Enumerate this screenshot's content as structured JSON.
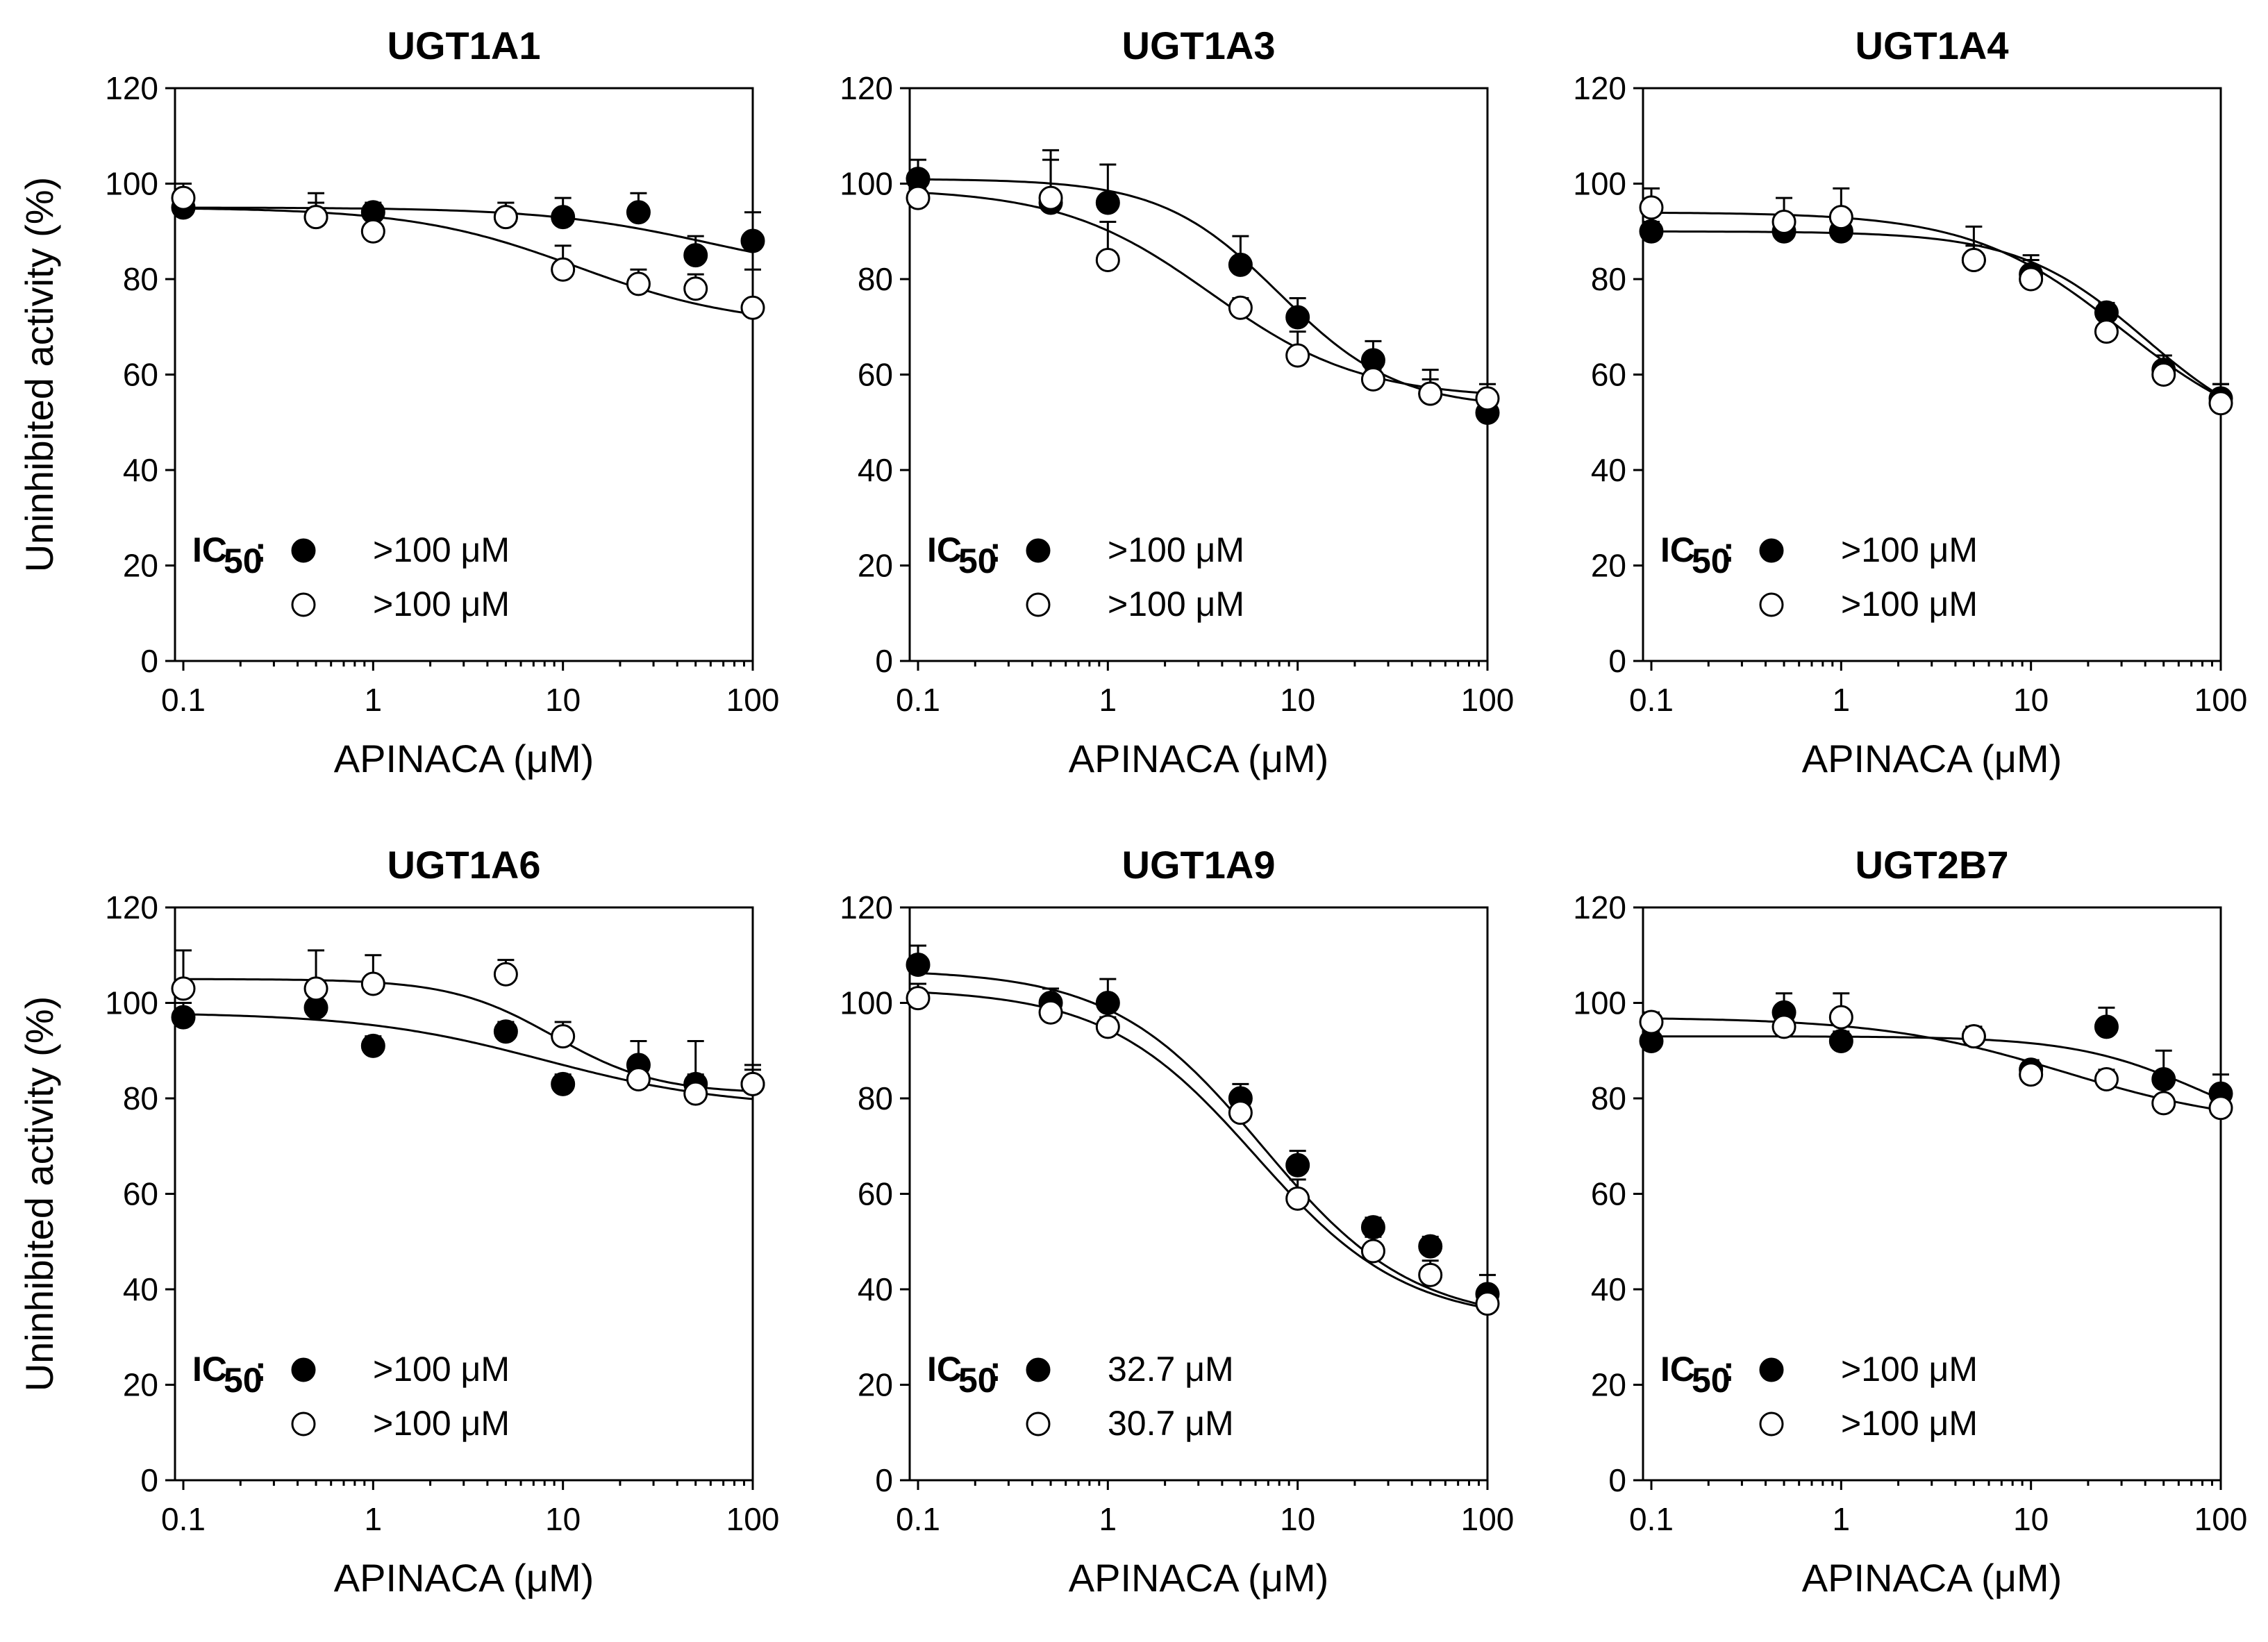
{
  "chart_data": [
    {
      "type": "scatter",
      "title": "UGT1A1",
      "xlabel": "APINACA (μM)",
      "ylabel": "Uninhibited activity (%)",
      "xscale": "log",
      "xlim": [
        0.1,
        100
      ],
      "ylim": [
        0,
        120
      ],
      "xticks": [
        "0.1",
        "1",
        "10",
        "100"
      ],
      "yticks": [
        "0",
        "20",
        "40",
        "60",
        "80",
        "100",
        "120"
      ],
      "legend": {
        "label": "IC",
        "subscript": "50",
        "entries": [
          ">100 μM",
          ">100 μM"
        ]
      },
      "series": [
        {
          "name": "filled",
          "x": [
            0.1,
            0.5,
            1,
            5,
            10,
            25,
            50,
            100
          ],
          "y": [
            95,
            93,
            94,
            93,
            93,
            94,
            85,
            88
          ],
          "err": [
            2,
            3,
            2,
            3,
            4,
            4,
            4,
            6
          ],
          "curve": {
            "top": 95,
            "bottom": 80,
            "ic50": 60,
            "hill": 1
          }
        },
        {
          "name": "open",
          "x": [
            0.1,
            0.5,
            1,
            5,
            10,
            25,
            50,
            100
          ],
          "y": [
            97,
            93,
            90,
            93,
            82,
            79,
            78,
            74
          ],
          "err": [
            3,
            5,
            5,
            3,
            5,
            3,
            3,
            8
          ],
          "curve": {
            "top": 95,
            "bottom": 70,
            "ic50": 12,
            "hill": 1
          }
        }
      ]
    },
    {
      "type": "scatter",
      "title": "UGT1A3",
      "xlabel": "APINACA (μM)",
      "ylabel": "",
      "xscale": "log",
      "xlim": [
        0.1,
        100
      ],
      "ylim": [
        0,
        120
      ],
      "xticks": [
        "0.1",
        "1",
        "10",
        "100"
      ],
      "yticks": [
        "0",
        "20",
        "40",
        "60",
        "80",
        "100",
        "120"
      ],
      "legend": {
        "label": "IC",
        "subscript": "50",
        "entries": [
          ">100 μM",
          ">100 μM"
        ]
      },
      "series": [
        {
          "name": "filled",
          "x": [
            0.1,
            0.5,
            1,
            5,
            10,
            25,
            50,
            100
          ],
          "y": [
            101,
            96,
            96,
            83,
            72,
            63,
            56,
            52
          ],
          "err": [
            4,
            9,
            8,
            6,
            4,
            4,
            3,
            2
          ],
          "curve": {
            "top": 101,
            "bottom": 53,
            "ic50": 8,
            "hill": 1.4
          }
        },
        {
          "name": "open",
          "x": [
            0.1,
            0.5,
            1,
            5,
            10,
            25,
            50,
            100
          ],
          "y": [
            97,
            97,
            84,
            74,
            64,
            59,
            56,
            55
          ],
          "err": [
            2,
            10,
            8,
            2,
            5,
            2,
            5,
            3
          ],
          "curve": {
            "top": 99,
            "bottom": 55,
            "ic50": 3.5,
            "hill": 1.1
          }
        }
      ]
    },
    {
      "type": "scatter",
      "title": "UGT1A4",
      "xlabel": "APINACA (μM)",
      "ylabel": "",
      "xscale": "log",
      "xlim": [
        0.1,
        100
      ],
      "ylim": [
        0,
        120
      ],
      "xticks": [
        "0.1",
        "1",
        "10",
        "100"
      ],
      "yticks": [
        "0",
        "20",
        "40",
        "60",
        "80",
        "100",
        "120"
      ],
      "legend": {
        "label": "IC",
        "subscript": "50",
        "entries": [
          ">100 μM",
          ">100 μM"
        ]
      },
      "series": [
        {
          "name": "filled",
          "x": [
            0.1,
            0.5,
            1,
            5,
            10,
            25,
            50,
            100
          ],
          "y": [
            90,
            90,
            90,
            84,
            81,
            73,
            61,
            55
          ],
          "err": [
            2,
            3,
            3,
            3,
            3,
            2,
            3,
            3
          ],
          "curve": {
            "top": 90,
            "bottom": 45,
            "ic50": 40,
            "hill": 1.3
          }
        },
        {
          "name": "open",
          "x": [
            0.1,
            0.5,
            1,
            5,
            10,
            25,
            50,
            100
          ],
          "y": [
            95,
            92,
            93,
            84,
            80,
            69,
            60,
            54
          ],
          "err": [
            4,
            5,
            6,
            7,
            5,
            5,
            4,
            4
          ],
          "curve": {
            "top": 94,
            "bottom": 45,
            "ic50": 30,
            "hill": 1.1
          }
        }
      ]
    },
    {
      "type": "scatter",
      "title": "UGT1A6",
      "xlabel": "APINACA (μM)",
      "ylabel": "Uninhibited activity (%)",
      "xscale": "log",
      "xlim": [
        0.1,
        100
      ],
      "ylim": [
        0,
        120
      ],
      "xticks": [
        "0.1",
        "1",
        "10",
        "100"
      ],
      "yticks": [
        "0",
        "20",
        "40",
        "60",
        "80",
        "100",
        "120"
      ],
      "legend": {
        "label": "IC",
        "subscript": "50",
        "entries": [
          ">100 μM",
          ">100 μM"
        ]
      },
      "series": [
        {
          "name": "filled",
          "x": [
            0.1,
            0.5,
            1,
            5,
            10,
            25,
            50,
            100
          ],
          "y": [
            97,
            99,
            91,
            94,
            83,
            87,
            83,
            83
          ],
          "err": [
            3,
            4,
            2,
            2,
            2,
            5,
            9,
            4
          ],
          "curve": {
            "top": 98,
            "bottom": 78,
            "ic50": 8,
            "hill": 0.9
          }
        },
        {
          "name": "open",
          "x": [
            0.1,
            0.5,
            1,
            5,
            10,
            25,
            50,
            100
          ],
          "y": [
            103,
            103,
            104,
            106,
            93,
            84,
            81,
            83
          ],
          "err": [
            8,
            8,
            6,
            3,
            3,
            2,
            4,
            3
          ],
          "curve": {
            "top": 105,
            "bottom": 81,
            "ic50": 9,
            "hill": 1.6
          }
        }
      ]
    },
    {
      "type": "scatter",
      "title": "UGT1A9",
      "xlabel": "APINACA (μM)",
      "ylabel": "",
      "xscale": "log",
      "xlim": [
        0.1,
        100
      ],
      "ylim": [
        0,
        120
      ],
      "xticks": [
        "0.1",
        "1",
        "10",
        "100"
      ],
      "yticks": [
        "0",
        "20",
        "40",
        "60",
        "80",
        "100",
        "120"
      ],
      "legend": {
        "label": "IC",
        "subscript": "50",
        "entries": [
          "32.7 μM",
          "30.7 μM"
        ]
      },
      "series": [
        {
          "name": "filled",
          "x": [
            0.1,
            0.5,
            1,
            5,
            10,
            25,
            50,
            100
          ],
          "y": [
            108,
            100,
            100,
            80,
            66,
            53,
            49,
            39
          ],
          "err": [
            4,
            3,
            5,
            3,
            3,
            2,
            2,
            4
          ],
          "curve": {
            "top": 107,
            "bottom": 33,
            "ic50": 6.5,
            "hill": 1.1
          }
        },
        {
          "name": "open",
          "x": [
            0.1,
            0.5,
            1,
            5,
            10,
            25,
            50,
            100
          ],
          "y": [
            101,
            98,
            95,
            77,
            59,
            48,
            43,
            37
          ],
          "err": [
            3,
            3,
            2,
            3,
            4,
            3,
            3,
            3
          ],
          "curve": {
            "top": 103,
            "bottom": 33,
            "ic50": 6,
            "hill": 1.1
          }
        }
      ]
    },
    {
      "type": "scatter",
      "title": "UGT2B7",
      "xlabel": "APINACA (μM)",
      "ylabel": "",
      "xscale": "log",
      "xlim": [
        0.1,
        100
      ],
      "ylim": [
        0,
        120
      ],
      "xticks": [
        "0.1",
        "1",
        "10",
        "100"
      ],
      "yticks": [
        "0",
        "20",
        "40",
        "60",
        "80",
        "100",
        "120"
      ],
      "legend": {
        "label": "IC",
        "subscript": "50",
        "entries": [
          ">100 μM",
          ">100 μM"
        ]
      },
      "series": [
        {
          "name": "filled",
          "x": [
            0.1,
            0.5,
            1,
            5,
            10,
            25,
            50,
            100
          ],
          "y": [
            92,
            98,
            92,
            93,
            86,
            95,
            84,
            81
          ],
          "err": [
            2,
            4,
            2,
            2,
            2,
            4,
            6,
            4
          ],
          "curve": {
            "top": 93,
            "bottom": 70,
            "ic50": 80,
            "hill": 1.3
          }
        },
        {
          "name": "open",
          "x": [
            0.1,
            0.5,
            1,
            5,
            10,
            25,
            50,
            100
          ],
          "y": [
            96,
            95,
            97,
            93,
            85,
            84,
            79,
            78
          ],
          "err": [
            2,
            3,
            5,
            2,
            2,
            2,
            4,
            2
          ],
          "curve": {
            "top": 97,
            "bottom": 74,
            "ic50": 15,
            "hill": 0.9
          }
        }
      ]
    }
  ]
}
